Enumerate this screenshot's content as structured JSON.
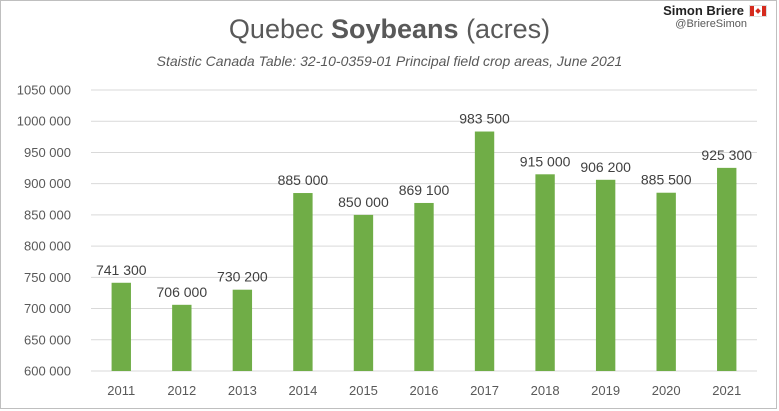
{
  "header": {
    "title_pre": "Quebec ",
    "title_bold": "Soybeans",
    "title_post": " (acres)",
    "subtitle": "Staistic Canada Table: 32-10-0359-01 Principal field crop areas, June 2021",
    "author_name": "Simon Briere",
    "author_handle": "@BriereSimon",
    "flag_icon": "canada-flag-icon"
  },
  "colors": {
    "bar": "#70ad47",
    "grid": "#d9d9d9",
    "text": "#595959"
  },
  "chart_data": {
    "type": "bar",
    "title": "Quebec Soybeans (acres)",
    "subtitle": "Staistic Canada Table: 32-10-0359-01 Principal field crop areas, June 2021",
    "categories": [
      "2011",
      "2012",
      "2013",
      "2014",
      "2015",
      "2016",
      "2017",
      "2018",
      "2019",
      "2020",
      "2021"
    ],
    "values": [
      741300,
      706000,
      730200,
      885000,
      850000,
      869100,
      983500,
      915000,
      906200,
      885500,
      925300
    ],
    "value_labels": [
      "741 300",
      "706 000",
      "730 200",
      "885 000",
      "850 000",
      "869 100",
      "983 500",
      "915 000",
      "906 200",
      "885 500",
      "925 300"
    ],
    "ylim": [
      600000,
      1050000
    ],
    "yticks": [
      600000,
      650000,
      700000,
      750000,
      800000,
      850000,
      900000,
      950000,
      1000000,
      1050000
    ],
    "ytick_labels": [
      "600 000",
      "650 000",
      "700 000",
      "750 000",
      "800 000",
      "850 000",
      "900 000",
      "950 000",
      "1000 000",
      "1050 000"
    ],
    "grid": true,
    "xlabel": "",
    "ylabel": ""
  }
}
